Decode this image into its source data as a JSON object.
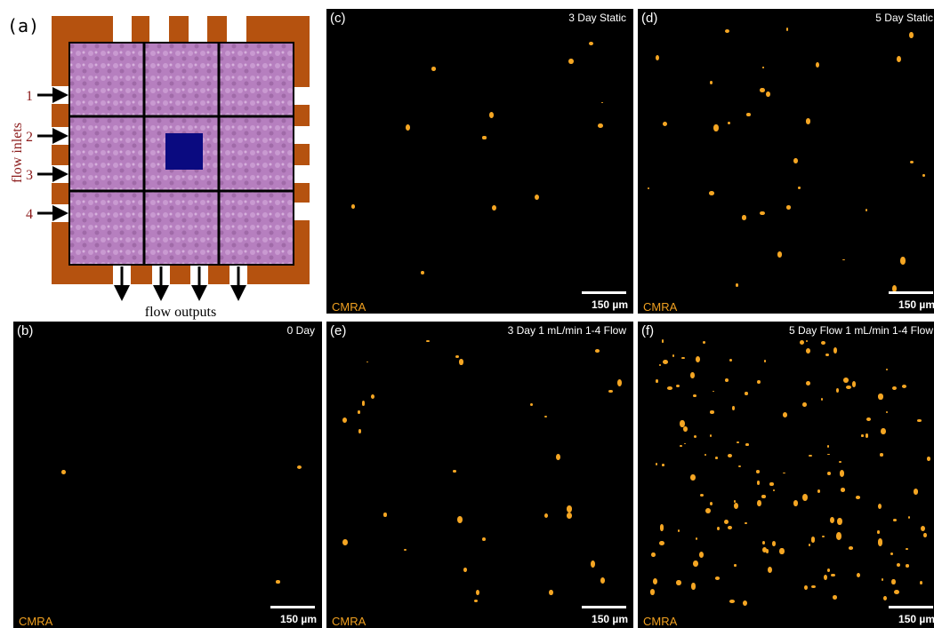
{
  "panel_a": {
    "label": "(a)",
    "inlets_label": "flow inlets",
    "inlets": [
      "1",
      "2",
      "3",
      "4"
    ],
    "outputs_label": "flow outputs"
  },
  "image_panels": [
    {
      "label": "(c)",
      "title": "3 Day Static",
      "stain": "CMRA",
      "scale_bar": "150 µm"
    },
    {
      "label": "(d)",
      "title": "5 Day Static",
      "stain": "CMRA",
      "scale_bar": "150 µm"
    },
    {
      "label": "(b)",
      "title": "0 Day",
      "stain": "CMRA",
      "scale_bar": "150 µm"
    },
    {
      "label": "(e)",
      "title": "3 Day 1 mL/min 1-4 Flow",
      "stain": "CMRA",
      "scale_bar": "150 µm"
    },
    {
      "label": "(f)",
      "title": "5 Day Flow 1 mL/min 1-4 Flow",
      "stain": "CMRA",
      "scale_bar": "150 µm"
    }
  ]
}
